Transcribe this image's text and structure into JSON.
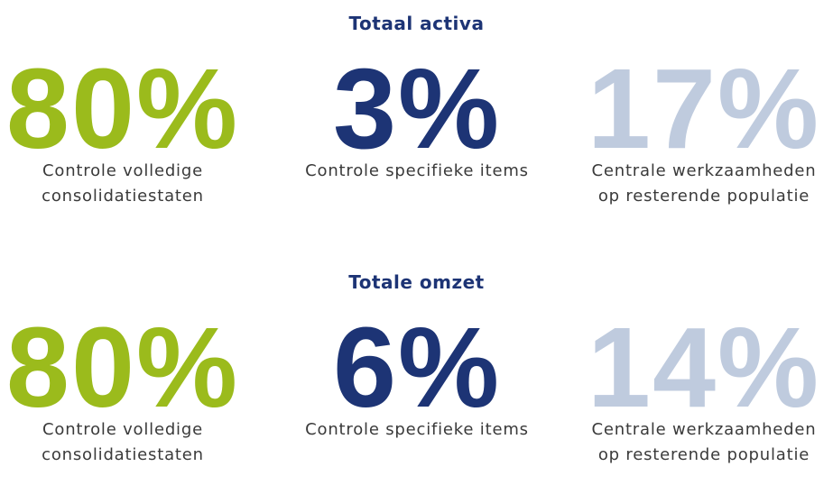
{
  "sections": [
    {
      "title": "Totaal activa",
      "items": [
        {
          "value": "80%",
          "lines": [
            "Controle volledige",
            "consolidatiestaten"
          ]
        },
        {
          "value": "3%",
          "lines": [
            "Controle specifieke items"
          ]
        },
        {
          "value": "17%",
          "lines": [
            "Centrale werkzaamheden",
            "op resterende populatie"
          ]
        }
      ]
    },
    {
      "title": "Totale omzet",
      "items": [
        {
          "value": "80%",
          "lines": [
            "Controle volledige",
            "consolidatiestaten"
          ]
        },
        {
          "value": "6%",
          "lines": [
            "Controle specifieke items"
          ]
        },
        {
          "value": "14%",
          "lines": [
            "Centrale werkzaamheden",
            "op resterende populatie"
          ]
        }
      ]
    }
  ]
}
